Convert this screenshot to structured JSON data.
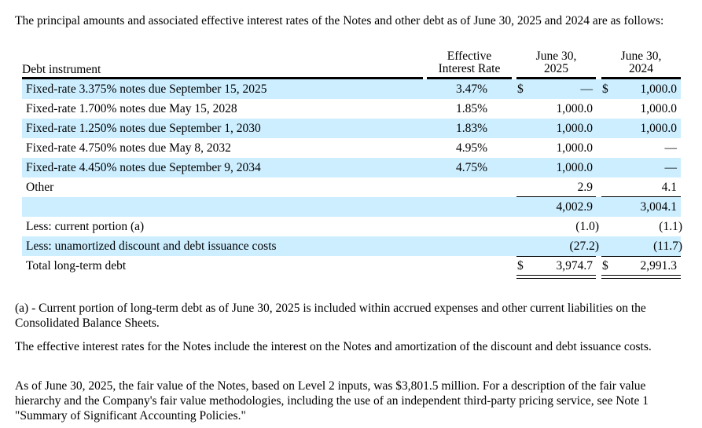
{
  "intro": "The principal amounts and associated effective interest rates of the Notes and other debt as of June 30, 2025 and 2024 are as follows:",
  "table": {
    "headers": {
      "instrument": "Debt instrument",
      "rate_l1": "Effective",
      "rate_l2": "Interest Rate",
      "c2025_l1": "June 30,",
      "c2025_l2": "2025",
      "c2024_l1": "June 30,",
      "c2024_l2": "2024"
    },
    "row_color": "#cceeff",
    "rows": [
      {
        "label": "Fixed-rate 3.375% notes due September 15, 2025",
        "rate": "3.47%",
        "d1": "$",
        "v2025": "—",
        "d2": "$",
        "v2024": "1,000.0"
      },
      {
        "label": "Fixed-rate 1.700% notes due May 15, 2028",
        "rate": "1.85%",
        "d1": "",
        "v2025": "1,000.0",
        "d2": "",
        "v2024": "1,000.0"
      },
      {
        "label": "Fixed-rate 1.250% notes due September 1, 2030",
        "rate": "1.83%",
        "d1": "",
        "v2025": "1,000.0",
        "d2": "",
        "v2024": "1,000.0"
      },
      {
        "label": "Fixed-rate 4.750% notes due May 8, 2032",
        "rate": "4.95%",
        "d1": "",
        "v2025": "1,000.0",
        "d2": "",
        "v2024": "—"
      },
      {
        "label": "Fixed-rate 4.450% notes due September 9, 2034",
        "rate": "4.75%",
        "d1": "",
        "v2025": "1,000.0",
        "d2": "",
        "v2024": "—"
      },
      {
        "label": "Other",
        "rate": "",
        "d1": "",
        "v2025": "2.9",
        "d2": "",
        "v2024": "4.1"
      },
      {
        "label": "",
        "rate": "",
        "d1": "",
        "v2025": "4,002.9",
        "d2": "",
        "v2024": "3,004.1"
      },
      {
        "label": "Less: current portion (a)",
        "rate": "",
        "d1": "",
        "v2025": "(1.0)",
        "d2": "",
        "v2024": "(1.1)"
      },
      {
        "label": "Less: unamortized discount and debt issuance costs",
        "rate": "",
        "d1": "",
        "v2025": "(27.2)",
        "d2": "",
        "v2024": "(11.7)"
      },
      {
        "label": "Total long-term debt",
        "rate": "",
        "d1": "$",
        "v2025": "3,974.7",
        "d2": "$",
        "v2024": "2,991.3"
      }
    ]
  },
  "footnote": "(a) - Current portion of long-term debt as of June 30, 2025 is included within accrued expenses and other current liabilities on the Consolidated Balance Sheets.",
  "para1": "The effective interest rates for the Notes include the interest on the Notes and amortization of the discount and debt issuance costs.",
  "para2": "As of June 30, 2025, the fair value of the Notes, based on Level 2 inputs, was $3,801.5 million. For a description of the fair value hierarchy and the Company's fair value methodologies, including the use of an independent third-party pricing service, see Note 1 \"Summary of Significant Accounting Policies.\""
}
